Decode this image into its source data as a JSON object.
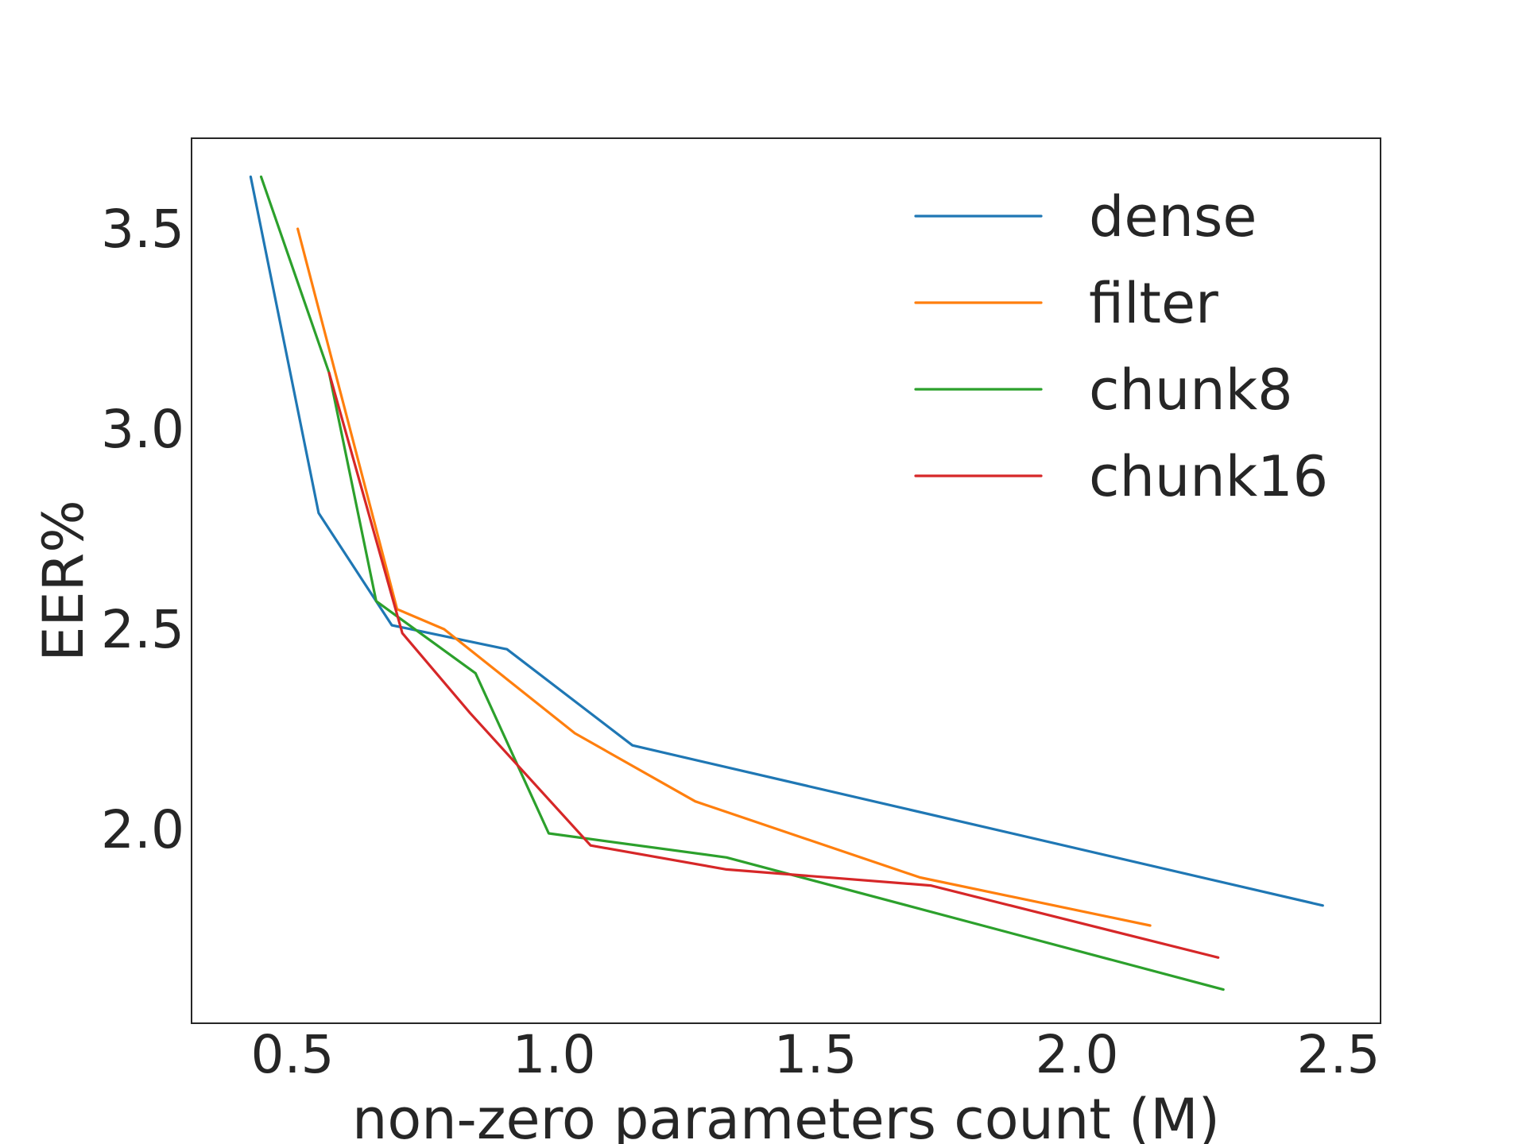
{
  "chart_data": {
    "type": "line",
    "title": "",
    "xlabel": "non-zero parameters count (M)",
    "ylabel": "EER%",
    "xlim": [
      0.32,
      2.5
    ],
    "ylim": [
      1.5,
      3.72
    ],
    "xticks": [
      0.5,
      1.0,
      1.5,
      2.0,
      2.5
    ],
    "yticks": [
      2.0,
      2.5,
      3.0,
      3.5
    ],
    "xtick_labels": [
      "0.5",
      "1.0",
      "1.5",
      "2.0",
      "2.5"
    ],
    "ytick_labels": [
      "2.0",
      "2.5",
      "3.0",
      "3.5"
    ],
    "grid": false,
    "legend_position": "top-right",
    "series": [
      {
        "name": "dense",
        "color": "#1f77b4",
        "x": [
          0.42,
          0.55,
          0.69,
          0.91,
          1.15,
          2.47
        ],
        "y": [
          3.63,
          2.79,
          2.51,
          2.45,
          2.21,
          1.81
        ]
      },
      {
        "name": "filter",
        "color": "#ff7f0e",
        "x": [
          0.51,
          0.7,
          0.79,
          1.04,
          1.27,
          1.7,
          2.14
        ],
        "y": [
          3.5,
          2.55,
          2.5,
          2.24,
          2.07,
          1.88,
          1.76
        ]
      },
      {
        "name": "chunk8",
        "color": "#2ca02c",
        "x": [
          0.44,
          0.57,
          0.66,
          0.85,
          0.99,
          1.33,
          2.28
        ],
        "y": [
          3.63,
          3.14,
          2.57,
          2.39,
          1.99,
          1.93,
          1.6
        ]
      },
      {
        "name": "chunk16",
        "color": "#d62728",
        "x": [
          0.57,
          0.71,
          0.84,
          1.07,
          1.33,
          1.72,
          2.27
        ],
        "y": [
          3.14,
          2.49,
          2.29,
          1.96,
          1.9,
          1.86,
          1.68
        ]
      }
    ]
  }
}
